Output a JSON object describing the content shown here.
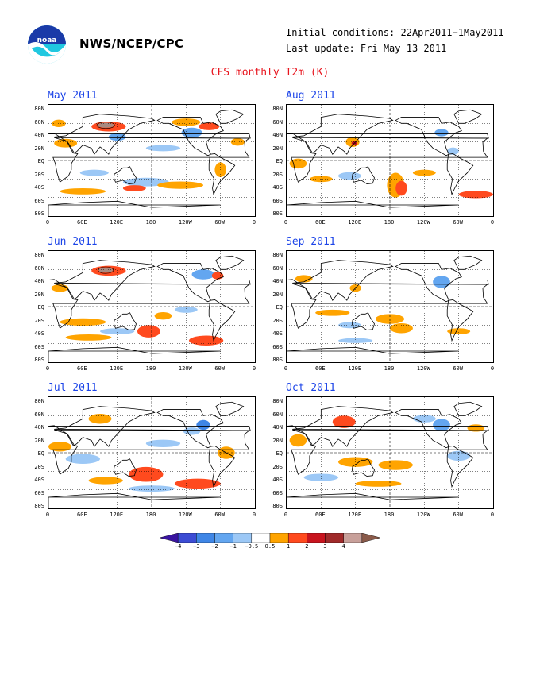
{
  "header": {
    "agency": "NWS/NCEP/CPC",
    "initial_conditions": "Initial conditions: 22Apr2011−1May2011",
    "last_update": "Last update: Fri May 13 2011",
    "title": "CFS monthly T2m (K)"
  },
  "logo_icon": "noaa-logo-icon",
  "axes": {
    "y_labels": [
      "80N",
      "60N",
      "40N",
      "20N",
      "EQ",
      "20S",
      "40S",
      "60S",
      "80S"
    ],
    "x_labels": [
      "0",
      "60E",
      "120E",
      "180",
      "120W",
      "60W",
      "0"
    ]
  },
  "panels": [
    {
      "id": "may",
      "label": "May 2011"
    },
    {
      "id": "aug",
      "label": "Aug 2011"
    },
    {
      "id": "jun",
      "label": "Jun 2011"
    },
    {
      "id": "sep",
      "label": "Sep 2011"
    },
    {
      "id": "jul",
      "label": "Jul 2011"
    },
    {
      "id": "oct",
      "label": "Oct 2011"
    }
  ],
  "colorbar": {
    "labels": [
      "−4",
      "−3",
      "−2",
      "−1",
      "−0.5",
      "0.5",
      "1",
      "2",
      "3",
      "4"
    ],
    "colors": [
      "#3a14a0",
      "#3c4cd4",
      "#3f86e6",
      "#63a6f0",
      "#9cc8f6",
      "#ffffff",
      "#ffa400",
      "#ff4a1e",
      "#c8141e",
      "#a02a2a",
      "#c8a09a",
      "#8a5a4a"
    ]
  },
  "chart_data": {
    "type": "heatmap",
    "variable": "T2m anomaly",
    "units": "K",
    "levels": [
      -4,
      -3,
      -2,
      -1,
      -0.5,
      0.5,
      1,
      2,
      3,
      4
    ]
  }
}
